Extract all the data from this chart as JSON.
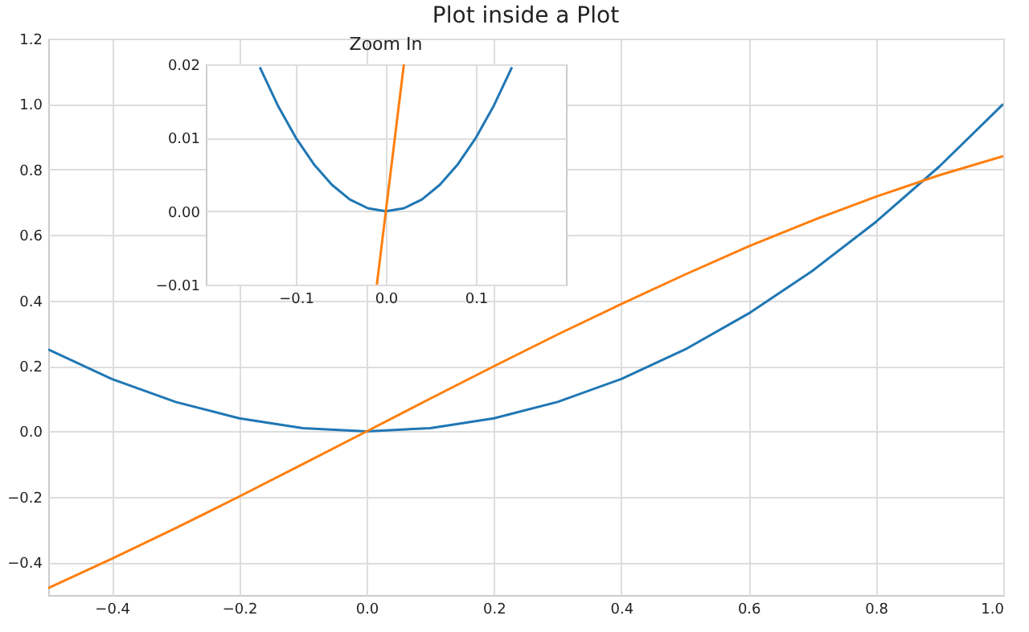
{
  "chart_data": [
    {
      "type": "line",
      "title": "Plot inside a Plot",
      "grid": true,
      "xlim": [
        -0.5,
        1.0
      ],
      "ylim": [
        -0.5,
        1.2
      ],
      "xticks": [
        {
          "value": -0.4,
          "label": "−0.4"
        },
        {
          "value": -0.2,
          "label": "−0.2"
        },
        {
          "value": 0,
          "label": "0.0"
        },
        {
          "value": 0.2,
          "label": "0.2"
        },
        {
          "value": 0.4,
          "label": "0.4"
        },
        {
          "value": 0.6,
          "label": "0.6"
        },
        {
          "value": 0.8,
          "label": "0.8"
        },
        {
          "value": 1,
          "label": "1.0"
        }
      ],
      "yticks": [
        {
          "value": -0.4,
          "label": "−0.4"
        },
        {
          "value": -0.2,
          "label": "−0.2"
        },
        {
          "value": 0,
          "label": "0.0"
        },
        {
          "value": 0.2,
          "label": "0.2"
        },
        {
          "value": 0.4,
          "label": "0.4"
        },
        {
          "value": 0.6,
          "label": "0.6"
        },
        {
          "value": 0.8,
          "label": "0.8"
        },
        {
          "value": 1,
          "label": "1.0"
        },
        {
          "value": 1.2,
          "label": "1.2"
        }
      ],
      "x": [
        -0.5,
        -0.4,
        -0.3,
        -0.2,
        -0.1,
        0,
        0.1,
        0.2,
        0.3,
        0.4,
        0.5,
        0.6,
        0.7,
        0.8,
        0.9,
        1.0
      ],
      "series": [
        {
          "color": "#1f77b4",
          "values": [
            0.25,
            0.16,
            0.09,
            0.04,
            0.01,
            0,
            0.01,
            0.04,
            0.09,
            0.16,
            0.25,
            0.36,
            0.49,
            0.64,
            0.81,
            1.0
          ]
        },
        {
          "color": "#ff7f0e",
          "values": [
            -0.479,
            -0.389,
            -0.296,
            -0.199,
            -0.1,
            0,
            0.1,
            0.199,
            0.296,
            0.389,
            0.479,
            0.565,
            0.644,
            0.717,
            0.783,
            0.841
          ]
        }
      ]
    },
    {
      "type": "line",
      "title": "Zoom In",
      "grid": true,
      "xlim": [
        -0.2,
        0.2
      ],
      "ylim": [
        -0.01,
        0.02
      ],
      "xticks": [
        {
          "value": -0.1,
          "label": "−0.1"
        },
        {
          "value": 0,
          "label": "0.0"
        },
        {
          "value": 0.1,
          "label": "0.1"
        }
      ],
      "yticks": [
        {
          "value": -0.01,
          "label": "−0.01"
        },
        {
          "value": 0,
          "label": "0.00"
        },
        {
          "value": 0.01,
          "label": "0.01"
        },
        {
          "value": 0.02,
          "label": "0.02"
        }
      ],
      "series": [
        {
          "color": "#1f77b4",
          "x": [
            -0.14,
            -0.12,
            -0.1,
            -0.08,
            -0.06,
            -0.04,
            -0.02,
            0,
            0.02,
            0.04,
            0.06,
            0.08,
            0.1,
            0.12,
            0.14
          ],
          "values": [
            0.0196,
            0.0144,
            0.01,
            0.0064,
            0.0036,
            0.0016,
            0.0004,
            0,
            0.0004,
            0.0016,
            0.0036,
            0.0064,
            0.01,
            0.0144,
            0.0196
          ]
        },
        {
          "color": "#ff7f0e",
          "x": [
            -0.01,
            0,
            0.02
          ],
          "values": [
            -0.01,
            0,
            0.02
          ]
        }
      ]
    }
  ]
}
